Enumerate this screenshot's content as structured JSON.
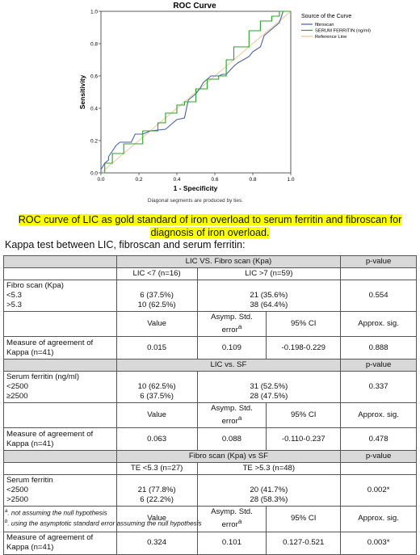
{
  "chart_data": {
    "type": "line",
    "title": "ROC Curve",
    "xlabel": "1 - Specificity",
    "ylabel": "Sensitivity",
    "xlim": [
      0,
      1
    ],
    "ylim": [
      0,
      1
    ],
    "x_ticks": [
      "0.0",
      "0.2",
      "0.4",
      "0.6",
      "0.8",
      "1.0"
    ],
    "y_ticks": [
      "0.0",
      "0.2",
      "0.4",
      "0.6",
      "0.8",
      "1.0"
    ],
    "footnote": "Diagonal segments are produced by ties.",
    "legend_title": "Source of the Curve",
    "legend_position": "right",
    "series": [
      {
        "name": "fibroscan",
        "color": "#4a5fa8",
        "x": [
          0,
          0,
          0.02,
          0.04,
          0.04,
          0.08,
          0.1,
          0.16,
          0.18,
          0.22,
          0.26,
          0.34,
          0.4,
          0.44,
          0.46,
          0.5,
          0.52,
          0.54,
          0.56,
          0.58,
          0.62,
          0.64,
          0.66,
          0.7,
          0.72,
          0.78,
          0.8,
          0.84,
          0.86,
          0.88,
          0.9,
          0.94,
          0.96,
          1.0
        ],
        "y": [
          0,
          0.02,
          0.06,
          0.08,
          0.1,
          0.17,
          0.19,
          0.19,
          0.24,
          0.24,
          0.26,
          0.27,
          0.33,
          0.34,
          0.45,
          0.49,
          0.52,
          0.56,
          0.58,
          0.6,
          0.6,
          0.61,
          0.61,
          0.66,
          0.68,
          0.72,
          0.75,
          0.78,
          0.85,
          0.87,
          0.89,
          0.93,
          1.0,
          1.0
        ]
      },
      {
        "name": "SERUM FERRITIN (ng/ml)",
        "color": "#2ca02c",
        "x": [
          0,
          0.02,
          0.02,
          0.06,
          0.06,
          0.12,
          0.12,
          0.22,
          0.22,
          0.3,
          0.3,
          0.34,
          0.34,
          0.4,
          0.4,
          0.44,
          0.44,
          0.5,
          0.5,
          0.56,
          0.56,
          0.62,
          0.62,
          0.66,
          0.66,
          0.7,
          0.7,
          0.78,
          0.78,
          0.84,
          0.84,
          0.9,
          0.9,
          0.94,
          0.94,
          1.0
        ],
        "y": [
          0,
          0,
          0.06,
          0.06,
          0.12,
          0.12,
          0.18,
          0.18,
          0.26,
          0.26,
          0.31,
          0.31,
          0.37,
          0.37,
          0.42,
          0.42,
          0.44,
          0.44,
          0.52,
          0.52,
          0.58,
          0.58,
          0.6,
          0.6,
          0.7,
          0.7,
          0.78,
          0.78,
          0.88,
          0.88,
          0.94,
          0.94,
          0.97,
          0.97,
          1.0,
          1.0
        ]
      },
      {
        "name": "Reference Line",
        "color": "#e8c48a",
        "x": [
          0,
          1
        ],
        "y": [
          0,
          1
        ]
      }
    ]
  },
  "caption": "ROC curve of LIC as gold standard of iron overload to serum ferritin and fibroscan for diagnosis of iron overload.",
  "kappa_title": "Kappa test between LIC, fibroscan and serum ferritin:",
  "table": {
    "sec1": {
      "title": "LIC VS. Fibro scan (Kpa)",
      "pvalue_head": "p-value",
      "col1": "LIC <7 (n=16)",
      "col2": "LIC >7 (n=59)",
      "row_label": "Fibro scan (Kpa)",
      "r1": "<5.3",
      "r2": ">5.3",
      "r1c1": "6 (37.5%)",
      "r2c1": "10 (62.5%)",
      "r1c2": "21 (35.6%)",
      "r2c2": "38 (64.4%)",
      "p": "0.554"
    },
    "stats_head": {
      "value": "Value",
      "ase": "Asymp. Std. error",
      "ase_sup": "a",
      "ci": "95% CI",
      "sig": "Approx. sig."
    },
    "agree_label": "Measure of agreement of Kappa (n=41)",
    "sec1_stats": {
      "value": "0.015",
      "ase": "0.109",
      "ci": "-0.198-0.229",
      "sig": "0.888"
    },
    "sec2": {
      "title": "LIC vs. SF",
      "pvalue_head": "p-value",
      "row_label": "Serum ferritin (ng/ml)",
      "r1": "<2500",
      "r2": "≥2500",
      "r1c1": "10 (62.5%)",
      "r2c1": "6 (37.5%)",
      "r1c2": "31 (52.5%)",
      "r2c2": "28 (47.5%)",
      "p": "0.337"
    },
    "sec2_stats": {
      "value": "0.063",
      "ase": "0.088",
      "ci": "-0.110-0.237",
      "sig": "0.478"
    },
    "sec3": {
      "title": "Fibro scan (Kpa) vs SF",
      "pvalue_head": "p-value",
      "col1": "TE <5.3 (n=27)",
      "col2": "TE >5.3 (n=48)",
      "row_label": "Serum ferritin",
      "r1": "<2500",
      "r2": ">2500",
      "r1c1": "21 (77.8%)",
      "r2c1": "6 (22.2%)",
      "r1c2": "20 (41.7%)",
      "r2c2": "28 (58.3%)",
      "p": "0.002*"
    },
    "sec3_stats": {
      "value": "0.324",
      "ase": "0.101",
      "ci": "0.127-0.521",
      "sig": "0.003*"
    }
  },
  "notes": {
    "a_sup": "a",
    "a_text": ". not assuming the null hypothesis",
    "b_sup": "b",
    "b_text": ". using the asymptotic standard error assuming the null hypothesis"
  }
}
